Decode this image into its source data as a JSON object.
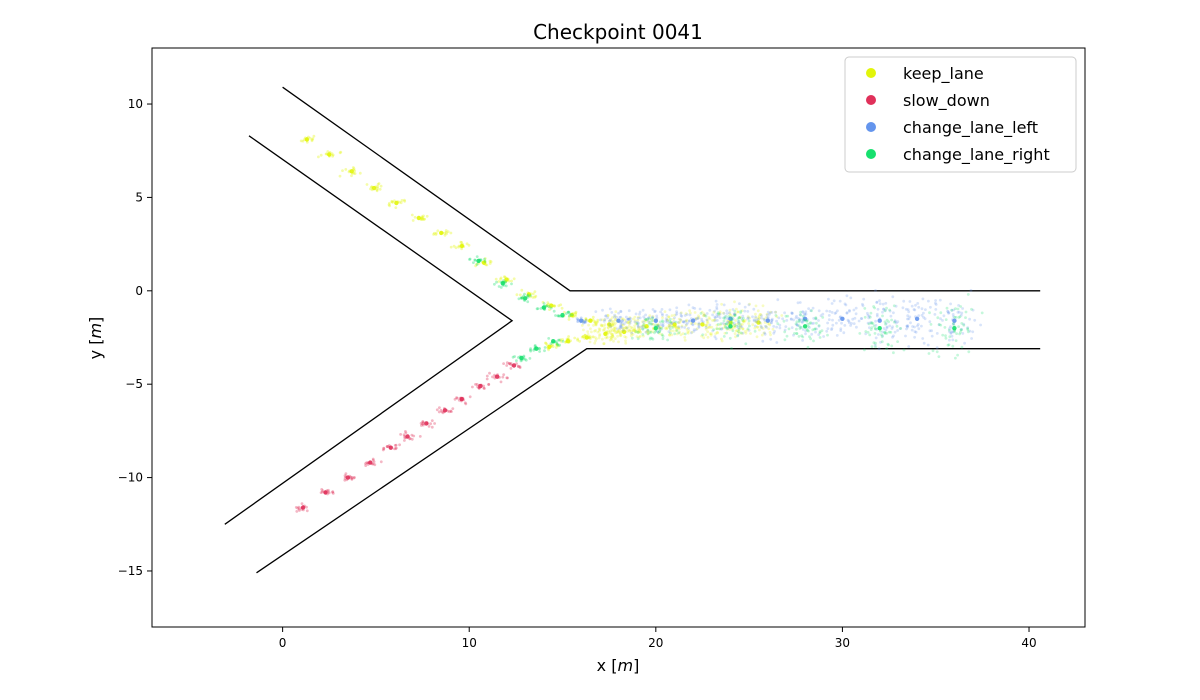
{
  "chart_data": {
    "type": "scatter",
    "title": "Checkpoint 0041",
    "xlabel_prefix": "x [",
    "xlabel_unit": "m",
    "xlabel_suffix": "]",
    "ylabel_prefix": "y [",
    "ylabel_unit": "m",
    "ylabel_suffix": "]",
    "xlim": [
      -7,
      43
    ],
    "ylim": [
      -18,
      13
    ],
    "x_ticks": [
      0,
      10,
      20,
      30,
      40
    ],
    "x_tick_labels": [
      "0",
      "10",
      "20",
      "30",
      "40"
    ],
    "y_ticks": [
      10,
      5,
      0,
      -5,
      -10,
      -15
    ],
    "y_tick_labels": [
      "10",
      "5",
      "0",
      "−5",
      "−10",
      "−15"
    ],
    "grid": false,
    "legend_position": "top-right",
    "road_lines": [
      [
        [
          0,
          10.9
        ],
        [
          15.4,
          0
        ],
        [
          40.6,
          0
        ]
      ],
      [
        [
          -1.8,
          8.3
        ],
        [
          12.3,
          -1.6
        ],
        [
          -3.1,
          -12.5
        ]
      ],
      [
        [
          -1.4,
          -15.1
        ],
        [
          16.3,
          -3.1
        ],
        [
          40.6,
          -3.1
        ]
      ]
    ],
    "series": [
      {
        "name": "keep_lane",
        "color": "#e2f50a",
        "path_points": [
          [
            1.3,
            8.1
          ],
          [
            2.5,
            7.3
          ],
          [
            3.7,
            6.4
          ],
          [
            4.9,
            5.5
          ],
          [
            6.1,
            4.7
          ],
          [
            7.3,
            3.9
          ],
          [
            8.5,
            3.1
          ],
          [
            9.6,
            2.4
          ],
          [
            10.8,
            1.5
          ],
          [
            12.0,
            0.6
          ],
          [
            13.2,
            -0.2
          ],
          [
            14.4,
            -0.8
          ],
          [
            15.5,
            -1.3
          ],
          [
            16.5,
            -1.6
          ],
          [
            17.5,
            -1.8
          ],
          [
            18.3,
            -2.2
          ],
          [
            17.3,
            -2.3
          ],
          [
            16.3,
            -2.5
          ],
          [
            15.3,
            -2.7
          ],
          [
            14.3,
            -3.0
          ],
          [
            19.5,
            -1.9
          ],
          [
            21.0,
            -1.8
          ],
          [
            22.5,
            -1.8
          ],
          [
            24.0,
            -1.7
          ],
          [
            25.5,
            -1.7
          ]
        ]
      },
      {
        "name": "slow_down",
        "color": "#e0305a",
        "path_points": [
          [
            1.1,
            -11.6
          ],
          [
            2.3,
            -10.8
          ],
          [
            3.5,
            -10.0
          ],
          [
            4.7,
            -9.2
          ],
          [
            5.8,
            -8.4
          ],
          [
            6.7,
            -7.8
          ],
          [
            7.7,
            -7.1
          ],
          [
            8.7,
            -6.4
          ],
          [
            9.6,
            -5.8
          ],
          [
            10.6,
            -5.1
          ],
          [
            11.5,
            -4.6
          ],
          [
            12.4,
            -4.0
          ]
        ]
      },
      {
        "name": "change_lane_left",
        "color": "#6495ed",
        "path_points": [
          [
            16.0,
            -1.6
          ],
          [
            18.0,
            -1.6
          ],
          [
            20.0,
            -1.6
          ],
          [
            22.0,
            -1.6
          ],
          [
            24.0,
            -1.5
          ],
          [
            26.0,
            -1.6
          ],
          [
            28.0,
            -1.5
          ],
          [
            30.0,
            -1.5
          ],
          [
            32.0,
            -1.6
          ],
          [
            34.0,
            -1.5
          ],
          [
            36.0,
            -1.6
          ]
        ]
      },
      {
        "name": "change_lane_right",
        "color": "#17e06e",
        "path_points": [
          [
            10.5,
            1.6
          ],
          [
            11.8,
            0.4
          ],
          [
            13.0,
            -0.4
          ],
          [
            14.0,
            -0.9
          ],
          [
            15.0,
            -1.3
          ],
          [
            12.8,
            -3.6
          ],
          [
            13.6,
            -3.1
          ],
          [
            14.5,
            -2.7
          ],
          [
            20.0,
            -2.0
          ],
          [
            24.0,
            -1.9
          ],
          [
            28.0,
            -1.9
          ],
          [
            32.0,
            -2.0
          ],
          [
            36.0,
            -2.0
          ]
        ]
      }
    ]
  }
}
